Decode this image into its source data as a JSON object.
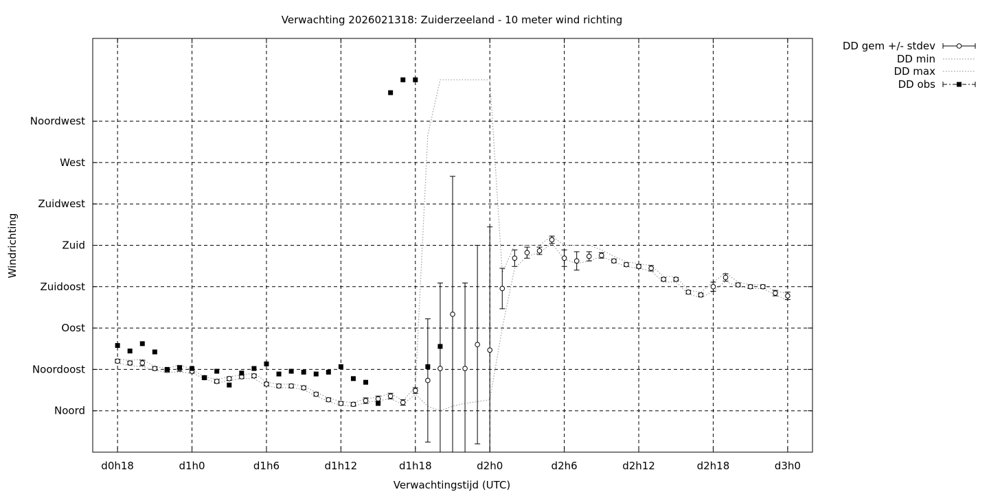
{
  "chart_data": {
    "type": "scatter",
    "title": "Verwachting 2026021318: Zuiderzeeland - 10 meter wind richting",
    "xlabel": "Verwachtingstijd (UTC)",
    "ylabel": "Windrichting",
    "xlim": [
      -2,
      56
    ],
    "ylim": [
      -45,
      405
    ],
    "x_ticks": [
      {
        "value": 0,
        "label": "d0h18"
      },
      {
        "value": 6,
        "label": "d1h0"
      },
      {
        "value": 12,
        "label": "d1h6"
      },
      {
        "value": 18,
        "label": "d1h12"
      },
      {
        "value": 24,
        "label": "d1h18"
      },
      {
        "value": 30,
        "label": "d2h0"
      },
      {
        "value": 36,
        "label": "d2h6"
      },
      {
        "value": 42,
        "label": "d2h12"
      },
      {
        "value": 48,
        "label": "d2h18"
      },
      {
        "value": 54,
        "label": "d3h0"
      }
    ],
    "y_ticks": [
      {
        "value": 0,
        "label": "Noord"
      },
      {
        "value": 45,
        "label": "Noordoost"
      },
      {
        "value": 90,
        "label": "Oost"
      },
      {
        "value": 135,
        "label": "Zuidoost"
      },
      {
        "value": 180,
        "label": "Zuid"
      },
      {
        "value": 225,
        "label": "Zuidwest"
      },
      {
        "value": 270,
        "label": "West"
      },
      {
        "value": 315,
        "label": "Noordwest"
      }
    ],
    "grid": true,
    "legend_position": "outside-top-right",
    "series": [
      {
        "name": "DD gem +/- stdev",
        "style": "errorbars-open-circles",
        "x": [
          0,
          1,
          2,
          3,
          4,
          5,
          6,
          7,
          8,
          9,
          10,
          11,
          12,
          13,
          14,
          15,
          16,
          17,
          18,
          19,
          20,
          21,
          22,
          23,
          24,
          25,
          26,
          27,
          28,
          29,
          30,
          31,
          32,
          33,
          34,
          35,
          36,
          37,
          38,
          39,
          40,
          41,
          42,
          43,
          44,
          45,
          46,
          47,
          48,
          49,
          50,
          51,
          52,
          53,
          54
        ],
        "y": [
          54,
          52,
          52,
          46,
          44,
          46,
          43,
          36,
          32,
          35,
          37,
          38,
          29,
          27,
          27,
          25,
          18,
          12,
          8,
          7,
          11,
          13,
          16,
          9,
          22,
          33,
          46,
          105,
          46,
          72,
          66,
          133,
          166,
          172,
          174,
          186,
          166,
          163,
          168,
          169,
          163,
          159,
          157,
          155,
          143,
          143,
          129,
          126,
          135,
          145,
          137,
          135,
          135,
          128,
          125
        ],
        "stdev": [
          2,
          2,
          3,
          2,
          2,
          3,
          2,
          2,
          2,
          2,
          2,
          2,
          2,
          2,
          2,
          2,
          2,
          2,
          2,
          2,
          3,
          3,
          3,
          3,
          3,
          67,
          93,
          150,
          93,
          108,
          134,
          22,
          9,
          6,
          4,
          4,
          9,
          10,
          5,
          3,
          2,
          2,
          2,
          3,
          2,
          2,
          2,
          2,
          5,
          4,
          2,
          2,
          2,
          3,
          4
        ]
      },
      {
        "name": "DD min",
        "style": "dotted-line",
        "x": [
          0,
          1,
          2,
          3,
          4,
          5,
          6,
          7,
          8,
          9,
          10,
          11,
          12,
          13,
          14,
          15,
          16,
          17,
          18,
          19,
          20,
          21,
          22,
          23,
          24,
          25,
          26,
          27,
          28,
          29,
          30,
          31,
          32,
          33,
          34,
          35,
          36,
          37,
          38,
          39,
          40,
          41,
          42,
          43,
          44,
          45,
          46,
          47,
          48,
          49,
          50,
          51,
          52,
          53,
          54
        ],
        "y": [
          52,
          49,
          48,
          44,
          42,
          42,
          41,
          35,
          30,
          33,
          35,
          35,
          27,
          25,
          25,
          23,
          16,
          10,
          6,
          5,
          9,
          11,
          13,
          7,
          18,
          5,
          0,
          5,
          8,
          10,
          12,
          90,
          155,
          168,
          172,
          182,
          165,
          160,
          163,
          168,
          162,
          157,
          155,
          152,
          140,
          140,
          127,
          123,
          130,
          141,
          135,
          133,
          133,
          126,
          120
        ]
      },
      {
        "name": "DD max",
        "style": "dotted-line",
        "x": [
          0,
          1,
          2,
          3,
          4,
          5,
          6,
          7,
          8,
          9,
          10,
          11,
          12,
          13,
          14,
          15,
          16,
          17,
          18,
          19,
          20,
          21,
          22,
          23,
          24,
          25,
          26,
          27,
          28,
          29,
          30,
          31,
          32,
          33,
          34,
          35,
          36,
          37,
          38,
          39,
          40,
          41,
          42,
          43,
          44,
          45,
          46,
          47,
          48,
          49,
          50,
          51,
          52,
          53,
          54
        ],
        "y": [
          56,
          55,
          56,
          48,
          46,
          50,
          45,
          37,
          34,
          37,
          39,
          41,
          31,
          29,
          29,
          27,
          20,
          14,
          10,
          9,
          13,
          15,
          19,
          11,
          26,
          300,
          360,
          360,
          360,
          360,
          360,
          150,
          180,
          180,
          180,
          190,
          180,
          180,
          180,
          175,
          168,
          162,
          160,
          158,
          146,
          146,
          131,
          129,
          140,
          150,
          140,
          137,
          137,
          130,
          128
        ]
      },
      {
        "name": "DD obs",
        "style": "filled-squares",
        "x": [
          0,
          1,
          2,
          3,
          4,
          5,
          6,
          7,
          8,
          9,
          10,
          11,
          12,
          13,
          14,
          15,
          16,
          17,
          18,
          19,
          20,
          21,
          22,
          23,
          24,
          25,
          26
        ],
        "y": [
          71,
          65,
          73,
          64,
          45,
          47,
          46,
          36,
          43,
          28,
          41,
          46,
          51,
          40,
          43,
          42,
          40,
          42,
          48,
          35,
          31,
          8,
          346,
          360,
          360,
          48,
          70
        ]
      }
    ]
  }
}
